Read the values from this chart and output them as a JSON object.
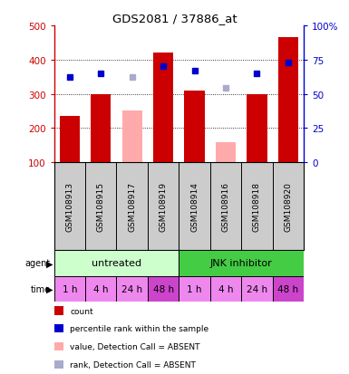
{
  "title": "GDS2081 / 37886_at",
  "samples": [
    "GSM108913",
    "GSM108915",
    "GSM108917",
    "GSM108919",
    "GSM108914",
    "GSM108916",
    "GSM108918",
    "GSM108920"
  ],
  "bar_values": [
    235,
    300,
    null,
    420,
    310,
    null,
    300,
    465
  ],
  "bar_absent_values": [
    null,
    null,
    252,
    null,
    null,
    158,
    null,
    null
  ],
  "bar_color": "#cc0000",
  "bar_absent_color": "#ffaaaa",
  "dot_values": [
    348,
    360,
    null,
    382,
    368,
    null,
    360,
    392
  ],
  "dot_absent_values": [
    null,
    null,
    348,
    null,
    null,
    317,
    null,
    null
  ],
  "dot_color": "#0000cc",
  "dot_absent_color": "#aaaacc",
  "ylim_left": [
    100,
    500
  ],
  "ylim_right": [
    0,
    100
  ],
  "yticks_left": [
    100,
    200,
    300,
    400,
    500
  ],
  "yticks_right": [
    0,
    25,
    50,
    75,
    100
  ],
  "ytick_labels_left": [
    "100",
    "200",
    "300",
    "400",
    "500"
  ],
  "ytick_labels_right": [
    "0",
    "25",
    "50",
    "75",
    "100%"
  ],
  "left_axis_color": "#cc0000",
  "right_axis_color": "#0000cc",
  "agent_labels": [
    {
      "text": "untreated",
      "start": 0,
      "end": 4,
      "color": "#ccffcc"
    },
    {
      "text": "JNK inhibitor",
      "start": 4,
      "end": 8,
      "color": "#44cc44"
    }
  ],
  "time_labels": [
    "1 h",
    "4 h",
    "24 h",
    "48 h",
    "1 h",
    "4 h",
    "24 h",
    "48 h"
  ],
  "time_colors": [
    "#ee88ee",
    "#ee88ee",
    "#ee88ee",
    "#cc44cc",
    "#ee88ee",
    "#ee88ee",
    "#ee88ee",
    "#cc44cc"
  ],
  "plot_bg": "#cccccc",
  "grid_color": "#000000",
  "dotted_lines": [
    200,
    300,
    400
  ],
  "legend_items": [
    {
      "label": "count",
      "color": "#cc0000"
    },
    {
      "label": "percentile rank within the sample",
      "color": "#0000cc"
    },
    {
      "label": "value, Detection Call = ABSENT",
      "color": "#ffaaaa"
    },
    {
      "label": "rank, Detection Call = ABSENT",
      "color": "#aaaacc"
    }
  ]
}
